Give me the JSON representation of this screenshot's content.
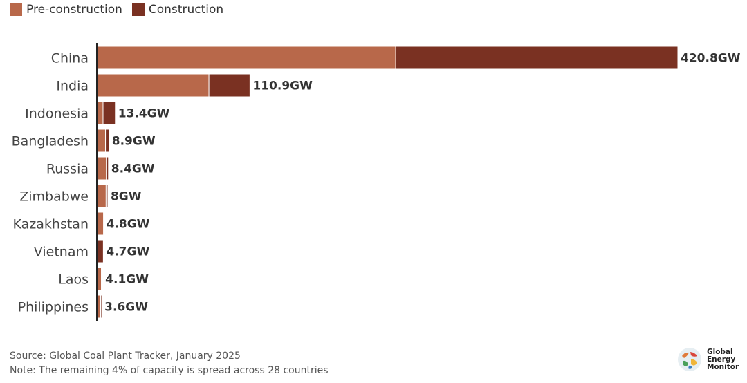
{
  "legend": {
    "pre_label": "Pre-construction",
    "con_label": "Construction"
  },
  "colors": {
    "pre": "#b8684a",
    "con": "#7a3122",
    "axis": "#222222"
  },
  "chart_data": {
    "type": "bar",
    "orientation": "horizontal",
    "stacked": true,
    "unit": "GW",
    "categories": [
      "China",
      "India",
      "Indonesia",
      "Bangladesh",
      "Russia",
      "Zimbabwe",
      "Kazakhstan",
      "Vietnam",
      "Laos",
      "Philippines"
    ],
    "series": [
      {
        "name": "Pre-construction",
        "values": [
          216.5,
          81.2,
          4.5,
          6.3,
          6.9,
          6.7,
          4.8,
          0.6,
          3.3,
          2.8
        ]
      },
      {
        "name": "Construction",
        "values": [
          204.3,
          29.7,
          8.9,
          2.6,
          1.5,
          1.3,
          0,
          4.1,
          0.8,
          0.8
        ]
      }
    ],
    "totals_labels": [
      "420.8GW",
      "110.9GW",
      "13.4GW",
      "8.9GW",
      "8.4GW",
      "8GW",
      "4.8GW",
      "4.7GW",
      "4.1GW",
      "3.6GW"
    ],
    "xlim": [
      0,
      420.8
    ],
    "legend_position": "top-left",
    "grid": false
  },
  "footer": {
    "source": "Source: Global Coal Plant Tracker, January 2025",
    "note": "Note: The remaining 4% of capacity is spread across 28 countries"
  },
  "logo": {
    "line1": "Global",
    "line2": "Energy",
    "line3": "Monitor"
  }
}
